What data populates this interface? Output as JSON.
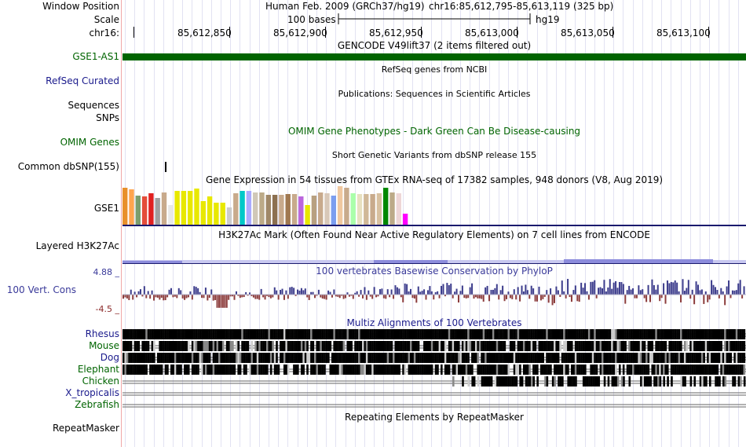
{
  "header": {
    "window_position_label": "Window Position",
    "scale_label": "Scale",
    "chrom_label": "chr16:",
    "assembly": "Human Feb. 2009 (GRCh37/hg19)",
    "position": "chr16:85,612,795-85,613,119 (325 bp)",
    "scale_text": "100 bases",
    "scale_db": "hg19",
    "ticks": [
      "85,612,850",
      "85,612,900",
      "85,612,950",
      "85,613,000",
      "85,613,050",
      "85,613,100"
    ]
  },
  "tracks": {
    "gencode": {
      "title": "GENCODE V49lift37 (2 items filtered out)",
      "item": "GSE1-AS1",
      "color": "#006400"
    },
    "refseq": {
      "label": "RefSeq Curated",
      "title": "RefSeq genes from NCBI"
    },
    "publications": {
      "title": "Publications: Sequences in Scientific Articles"
    },
    "sequences": {
      "label": "Sequences"
    },
    "snps": {
      "label": "SNPs"
    },
    "omim": {
      "label": "OMIM Genes",
      "title": "OMIM Gene Phenotypes - Dark Green Can Be Disease-causing"
    },
    "dbsnp": {
      "label": "Common dbSNP(155)",
      "title": "Short Genetic Variants from dbSNP release 155"
    },
    "gtex": {
      "label": "GSE1",
      "title": "Gene Expression in 54 tissues from GTEx RNA-seq of 17382 samples, 948 donors (V8, Aug 2019)"
    },
    "h3k27ac": {
      "label": "Layered H3K27Ac",
      "title": "H3K27Ac Mark (Often Found Near Active Regulatory Elements) on 7 cell lines from ENCODE"
    },
    "cons": {
      "label": "100 Vert. Cons",
      "title": "100 vertebrates Basewise Conservation by PhyloP",
      "max": "4.88 _",
      "min": "-4.5 _"
    },
    "multiz": {
      "title": "Multiz Alignments of 100 Vertebrates",
      "species": [
        "Rhesus",
        "Mouse",
        "Dog",
        "Elephant",
        "Chicken",
        "X_tropicalis",
        "Zebrafish"
      ]
    },
    "repeatmasker": {
      "label": "RepeatMasker",
      "title": "Repeating Elements by RepeatMasker"
    }
  },
  "chart_data": {
    "type": "bar",
    "title": "",
    "colors": [
      "#e8902a",
      "#ffa54f",
      "#7c9e6e",
      "#e44d3a",
      "#e02020",
      "#a0a0a0",
      "#c8aa8c",
      "#e8e8e8",
      "#e8e800",
      "#e8e800",
      "#e8e800",
      "#e8e800",
      "#e8e800",
      "#e8e800",
      "#e8e800",
      "#e8e800",
      "#cccccc",
      "#c8aa8c",
      "#00c8c8",
      "#aaaaff",
      "#d0c8b8",
      "#bcaa88",
      "#a08868",
      "#8c7050",
      "#c8aa8c",
      "#a07850",
      "#c8aa8c",
      "#bb66dd",
      "#e8e800",
      "#b8a080",
      "#c8aa8c",
      "#d8c8b8",
      "#7c9eef",
      "#f0c8a0",
      "#c8aa8c",
      "#aaffaa",
      "#e8e0c0",
      "#d0b898",
      "#c8aa8c",
      "#d8c0a0",
      "#008800",
      "#bcaa88",
      "#eed6d6",
      "#ff00ff"
    ],
    "values": [
      47,
      45,
      37,
      36,
      40,
      34,
      41,
      25,
      43,
      43,
      43,
      46,
      30,
      36,
      28,
      28,
      22,
      40,
      43,
      43,
      41,
      41,
      38,
      38,
      38,
      39,
      39,
      36,
      25,
      37,
      41,
      40,
      37,
      49,
      47,
      40,
      39,
      39,
      39,
      40,
      47,
      41,
      40,
      14
    ]
  }
}
